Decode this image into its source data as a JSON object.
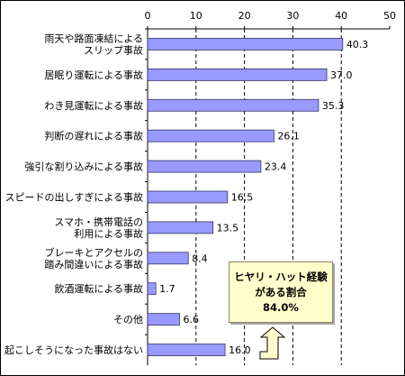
{
  "chart_data": {
    "type": "bar",
    "orientation": "horizontal",
    "categories": [
      [
        "雨天や路面凍結による",
        "スリップ事故"
      ],
      [
        "居眠り運転による事故"
      ],
      [
        "わき見運転による事故"
      ],
      [
        "判断の遅れによる事故"
      ],
      [
        "強引な割り込みによる事故"
      ],
      [
        "スピードの出しすぎによる事故"
      ],
      [
        "スマホ・携帯電話の",
        "利用による事故"
      ],
      [
        "ブレーキとアクセルの",
        "踏み間違いによる事故"
      ],
      [
        "飲酒運転による事故"
      ],
      [
        "その他"
      ],
      [
        "起こしそうになった事故はない"
      ]
    ],
    "values": [
      40.3,
      37.0,
      35.3,
      26.1,
      23.4,
      16.5,
      13.5,
      8.4,
      1.7,
      6.6,
      16.0
    ],
    "value_labels": [
      "40.3",
      "37.0",
      "35.3",
      "26.1",
      "23.4",
      "16.5",
      "13.5",
      "8.4",
      "1.7",
      "6.6",
      "16.0"
    ],
    "xlim": [
      0,
      50
    ],
    "xticks": [
      0,
      10,
      20,
      30,
      40,
      50
    ],
    "xtick_labels": [
      "0",
      "10",
      "20",
      "30",
      "40",
      "50"
    ],
    "grid": "dashed-vertical",
    "legend": "none",
    "title": "",
    "xlabel": "",
    "ylabel": ""
  },
  "annotation": {
    "line1": "ヒヤリ・ハット経験",
    "line2": "がある割合",
    "line3": "84.0%"
  },
  "colors": {
    "bar_fill": "#9999ff",
    "bar_stroke": "#333366",
    "callout_fill": "#ffffcc",
    "arrow_fill": "#ffffcc"
  }
}
